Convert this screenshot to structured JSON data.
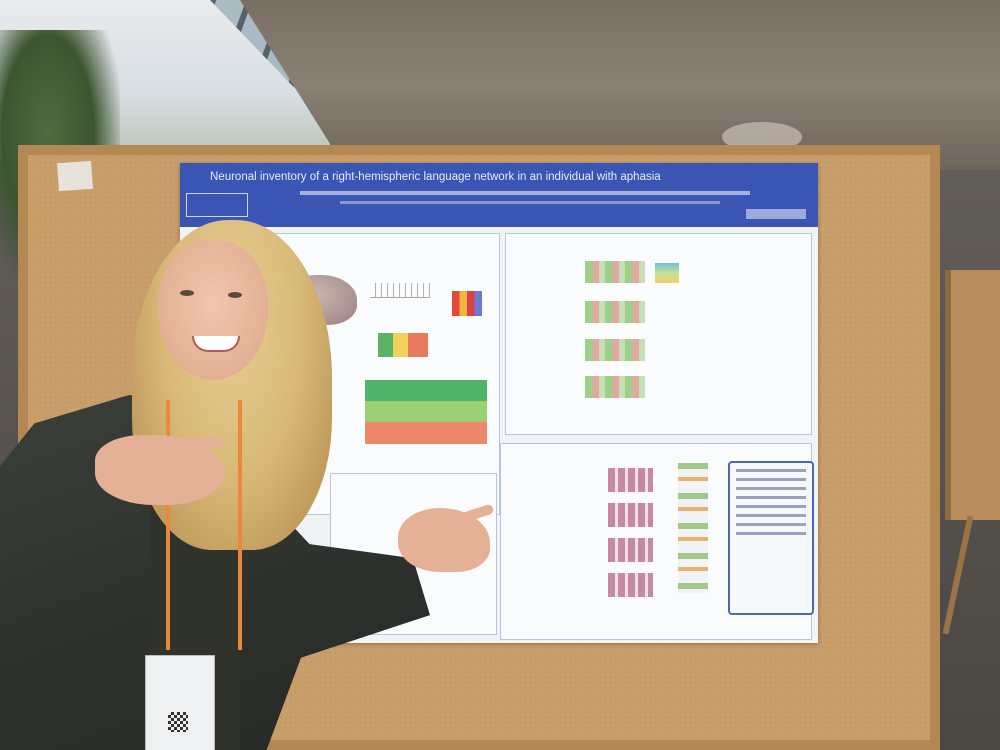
{
  "poster": {
    "title": "Neuronal inventory of a right-hemispheric language network in an individual with aphasia"
  },
  "colors": {
    "poster_header": "#3a55b4",
    "board_cork": "#c89f6b",
    "lanyard": "#e98a3b",
    "jacket": "#2d302c"
  }
}
